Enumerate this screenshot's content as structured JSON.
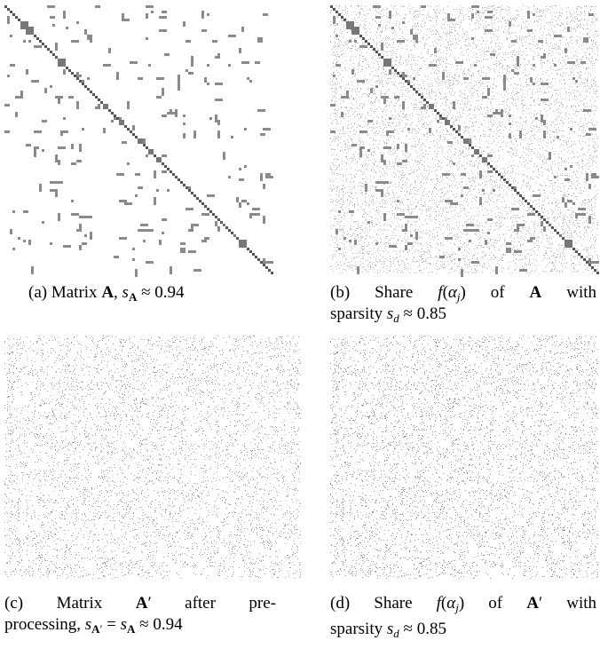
{
  "figure": {
    "panels": [
      {
        "id": "a",
        "caption_prefix": "(a) Matrix",
        "math": "A, s_A ≈ 0.94"
      },
      {
        "id": "b",
        "caption_line1": "(b)  Share  f(αj)  of  A  with",
        "caption_line2": "sparsity  s_d ≈ 0.85"
      },
      {
        "id": "c",
        "caption_line1": "(c)  Matrix   A′   after   pre-",
        "caption_line2": "processing, s_A′ = s_A ≈ 0.94"
      },
      {
        "id": "d",
        "caption_line1": "(d)  Share  f(αj)  of  A′  with",
        "caption_line2": "sparsity  s_d ≈ 0.85"
      }
    ]
  }
}
